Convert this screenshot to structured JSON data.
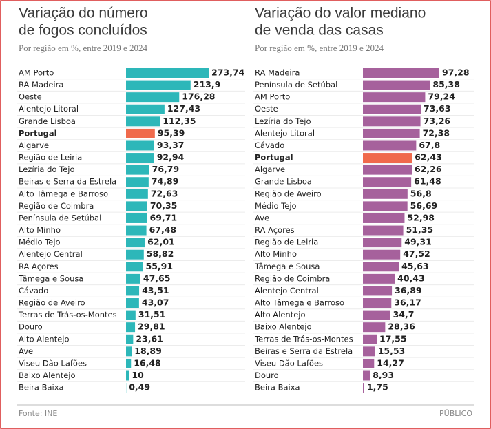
{
  "chart_data": [
    {
      "type": "bar",
      "orientation": "horizontal",
      "title": [
        "Variação do número",
        "de fogos concluídos"
      ],
      "subtitle": "Por região em %, entre 2019 e 2024",
      "categories": [
        "AM Porto",
        "RA Madeira",
        "Oeste",
        "Alentejo Litoral",
        "Grande Lisboa",
        "Portugal",
        "Algarve",
        "Região de Leiria",
        "Lezíria do Tejo",
        "Beiras e Serra da Estrela",
        "Alto Tâmega e Barroso",
        "Região de Coimbra",
        "Península de Setúbal",
        "Alto Minho",
        "Médio Tejo",
        "Alentejo Central",
        "RA Açores",
        "Tâmega e Sousa",
        "Cávado",
        "Região de Aveiro",
        "Terras de Trás-os-Montes",
        "Douro",
        "Alto Alentejo",
        "Ave",
        "Viseu Dão Lafões",
        "Baixo Alentejo",
        "Beira Baixa"
      ],
      "values": [
        273.74,
        213.9,
        176.28,
        127.43,
        112.35,
        95.39,
        93.37,
        92.94,
        76.79,
        74.89,
        72.63,
        70.35,
        69.71,
        67.48,
        62.01,
        58.82,
        55.91,
        47.65,
        43.51,
        43.07,
        31.51,
        29.81,
        23.61,
        18.89,
        16.48,
        10,
        0.49
      ],
      "value_labels": [
        "273,74",
        "213,9",
        "176,28",
        "127,43",
        "112,35",
        "95,39",
        "93,37",
        "92,94",
        "76,79",
        "74,89",
        "72,63",
        "70,35",
        "69,71",
        "67,48",
        "62,01",
        "58,82",
        "55,91",
        "47,65",
        "43,51",
        "43,07",
        "31,51",
        "29,81",
        "23,61",
        "18,89",
        "16,48",
        "10",
        "0,49"
      ],
      "color": "#2db7b9",
      "colors": [
        "#2db7b9",
        "#2db7b9",
        "#2db7b9",
        "#2db7b9",
        "#2db7b9",
        "#f06a4c",
        "#2db7b9",
        "#2db7b9",
        "#2db7b9",
        "#2db7b9",
        "#2db7b9",
        "#2db7b9",
        "#2db7b9",
        "#2db7b9",
        "#2db7b9",
        "#2db7b9",
        "#2db7b9",
        "#2db7b9",
        "#2db7b9",
        "#2db7b9",
        "#2db7b9",
        "#2db7b9",
        "#2db7b9",
        "#2db7b9",
        "#2db7b9",
        "#2db7b9",
        "#2db7b9"
      ]
    },
    {
      "type": "bar",
      "orientation": "horizontal",
      "title": [
        "Variação do valor mediano",
        "de venda das casas"
      ],
      "subtitle": "Por região em %, entre 2019 e 2024",
      "categories": [
        "RA Madeira",
        "Península de Setúbal",
        "AM Porto",
        "Oeste",
        "Lezíria do Tejo",
        "Alentejo Litoral",
        "Cávado",
        "Portugal",
        "Algarve",
        "Grande Lisboa",
        "Região de Aveiro",
        "Médio Tejo",
        "Ave",
        "RA Açores",
        "Região de Leiria",
        "Alto Minho",
        "Tâmega e Sousa",
        "Região de Coimbra",
        "Alentejo Central",
        "Alto Tâmega e Barroso",
        "Alto Alentejo",
        "Baixo Alentejo",
        "Terras de Trás-os-Montes",
        "Beiras e Serra da Estrela",
        "Viseu Dão Lafões",
        "Douro",
        "Beira Baixa"
      ],
      "values": [
        97.28,
        85.38,
        79.24,
        73.63,
        73.26,
        72.38,
        67.8,
        62.43,
        62.26,
        61.48,
        56.8,
        56.69,
        52.98,
        51.35,
        49.31,
        47.52,
        45.63,
        40.43,
        36.89,
        36.17,
        34.7,
        28.36,
        17.55,
        15.53,
        14.27,
        8.93,
        1.75
      ],
      "value_labels": [
        "97,28",
        "85,38",
        "79,24",
        "73,63",
        "73,26",
        "72,38",
        "67,8",
        "62,43",
        "62,26",
        "61,48",
        "56,8",
        "56,69",
        "52,98",
        "51,35",
        "49,31",
        "47,52",
        "45,63",
        "40,43",
        "36,89",
        "36,17",
        "34,7",
        "28,36",
        "17,55",
        "15,53",
        "14,27",
        "8,93",
        "1,75"
      ],
      "color": "#a6619c",
      "colors": [
        "#a6619c",
        "#a6619c",
        "#a6619c",
        "#a6619c",
        "#a6619c",
        "#a6619c",
        "#a6619c",
        "#f06a4c",
        "#a6619c",
        "#a6619c",
        "#a6619c",
        "#a6619c",
        "#a6619c",
        "#a6619c",
        "#a6619c",
        "#a6619c",
        "#a6619c",
        "#a6619c",
        "#a6619c",
        "#a6619c",
        "#a6619c",
        "#a6619c",
        "#a6619c",
        "#a6619c",
        "#a6619c",
        "#a6619c",
        "#a6619c"
      ]
    }
  ],
  "source": "Fonte: INE",
  "publisher": "PÚBLICO"
}
